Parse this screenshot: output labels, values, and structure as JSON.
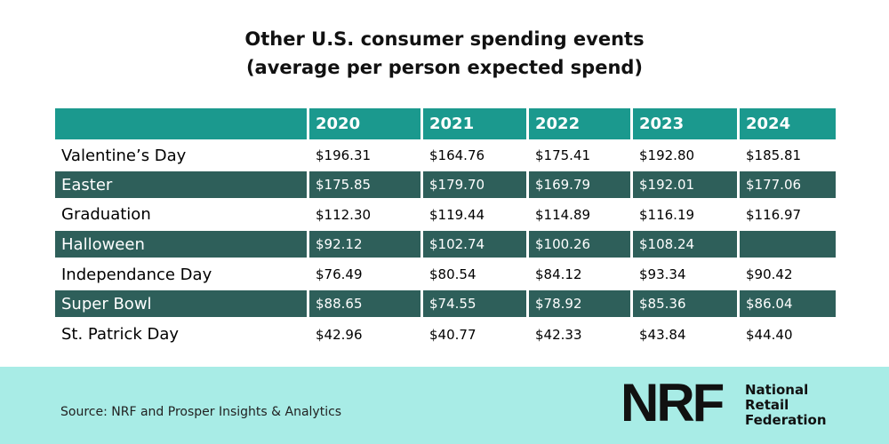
{
  "header": {
    "title_lines": [
      "Other U.S. consumer spending events",
      "(average per person expected spend)"
    ]
  },
  "table": {
    "columns": [
      "2020",
      "2021",
      "2022",
      "2023",
      "2024"
    ],
    "rows": [
      {
        "label": "Valentine’s Day",
        "values": [
          "$196.31",
          "$164.76",
          "$175.41",
          "$192.80",
          "$185.81"
        ]
      },
      {
        "label": "Easter",
        "values": [
          "$175.85",
          "$179.70",
          "$169.79",
          "$192.01",
          "$177.06"
        ]
      },
      {
        "label": "Graduation",
        "values": [
          "$112.30",
          "$119.44",
          "$114.89",
          "$116.19",
          "$116.97"
        ]
      },
      {
        "label": "Halloween",
        "values": [
          "$92.12",
          "$102.74",
          "$100.26",
          "$108.24",
          null
        ]
      },
      {
        "label": "Independance Day",
        "values": [
          "$76.49",
          "$80.54",
          "$84.12",
          "$93.34",
          "$90.42"
        ]
      },
      {
        "label": "Super Bowl",
        "values": [
          "$88.65",
          "$74.55",
          "$78.92",
          "$85.36",
          "$86.04"
        ]
      },
      {
        "label": "St. Patrick Day",
        "values": [
          "$42.96",
          "$40.77",
          "$42.33",
          "$43.84",
          "$44.40"
        ]
      }
    ]
  },
  "footer": {
    "source": "Source: NRF and Prosper Insights & Analytics",
    "logo_mark": "NRF",
    "logo_name": [
      "National",
      "Retail",
      "Federation"
    ]
  }
}
